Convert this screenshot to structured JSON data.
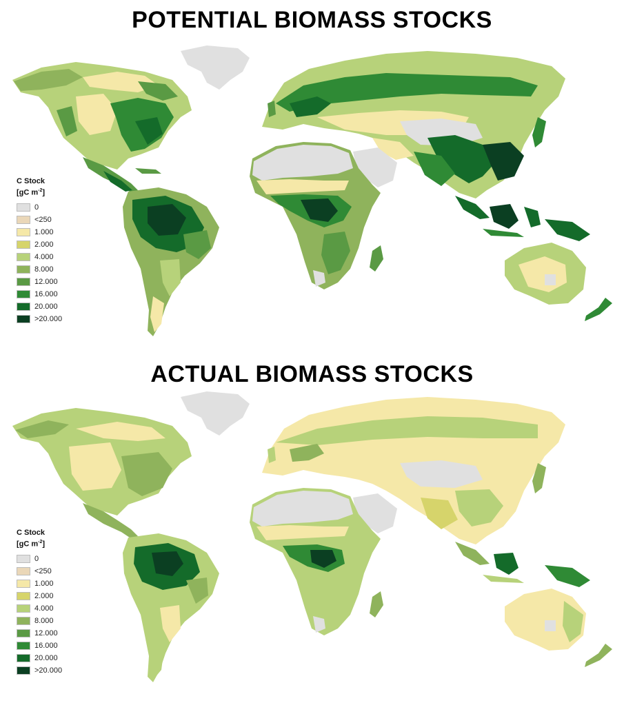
{
  "maps": [
    {
      "title": "POTENTIAL BIOMASS STOCKS",
      "legend": {
        "title": "C Stock",
        "unit_main": "[gC m",
        "unit_sup": "-2",
        "unit_close": "]",
        "classes": [
          {
            "label": "0",
            "color": "#e0e0e0"
          },
          {
            "label": "<250",
            "color": "#ead7b8"
          },
          {
            "label": "1.000",
            "color": "#f5e8a8"
          },
          {
            "label": "2.000",
            "color": "#d6d46b"
          },
          {
            "label": "4.000",
            "color": "#b7d27a"
          },
          {
            "label": "8.000",
            "color": "#8fb35c"
          },
          {
            "label": "12.000",
            "color": "#5a9a44"
          },
          {
            "label": "16.000",
            "color": "#2f8a35"
          },
          {
            "label": "20.000",
            "color": "#146b2a"
          },
          {
            "label": ">20.000",
            "color": "#0b3f22"
          }
        ]
      }
    },
    {
      "title": "ACTUAL BIOMASS STOCKS",
      "legend": {
        "title": "C Stock",
        "unit_main": "[gC m",
        "unit_sup": "-2",
        "unit_close": "]",
        "classes": [
          {
            "label": "0",
            "color": "#e0e0e0"
          },
          {
            "label": "<250",
            "color": "#ead7b8"
          },
          {
            "label": "1.000",
            "color": "#f5e8a8"
          },
          {
            "label": "2.000",
            "color": "#d6d46b"
          },
          {
            "label": "4.000",
            "color": "#b7d27a"
          },
          {
            "label": "8.000",
            "color": "#8fb35c"
          },
          {
            "label": "12.000",
            "color": "#5a9a44"
          },
          {
            "label": "16.000",
            "color": "#2f8a35"
          },
          {
            "label": "20.000",
            "color": "#146b2a"
          },
          {
            "label": ">20.000",
            "color": "#0b3f22"
          }
        ]
      }
    }
  ]
}
